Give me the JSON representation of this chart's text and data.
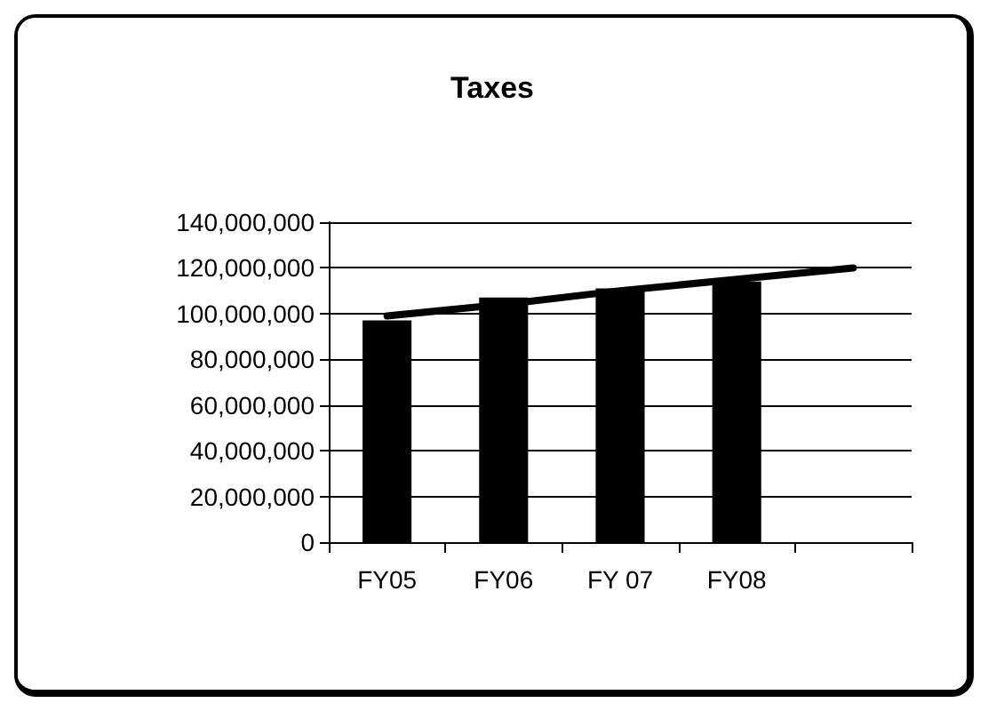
{
  "chart_data": {
    "type": "bar",
    "title": "Taxes",
    "categories": [
      "FY05",
      "FY06",
      "FY 07",
      "FY08",
      null
    ],
    "series": [
      {
        "color": "#000000",
        "values": [
          97000000,
          107000000,
          111000000,
          114000000,
          null
        ]
      },
      {
        "type": "line",
        "color": "#000000",
        "marker": "none",
        "line_style": "solid",
        "values": [
          99000000,
          104000000,
          110000000,
          115000000,
          120000000
        ]
      }
    ],
    "ylim": [
      0,
      140000000
    ],
    "yticks": [
      0,
      {
        "value": 20000000,
        "label": "20,000,000"
      },
      {
        "value": 40000000,
        "label": "40,000,000"
      },
      {
        "value": 60000000,
        "label": "60,000,000"
      },
      {
        "value": 80000000,
        "label": "80,000,000"
      },
      {
        "value": 100000000,
        "label": "100,000,000"
      },
      {
        "value": 120000000,
        "label": "120,000,000"
      },
      {
        "value": 140000000,
        "label": "140,000,000"
      }
    ],
    "grid": "y"
  }
}
